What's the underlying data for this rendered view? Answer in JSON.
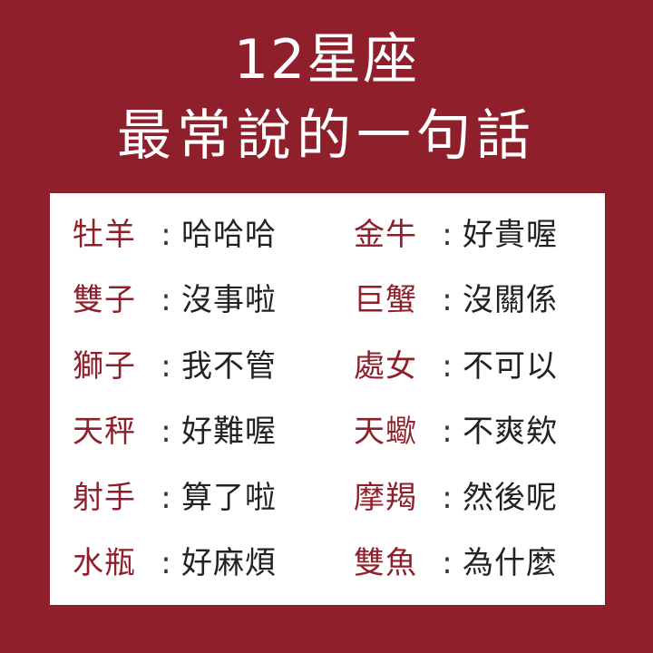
{
  "title": {
    "line1": "12星座",
    "line2": "最常說的一句話"
  },
  "separator": ":",
  "left_column": [
    {
      "sign": "牡羊",
      "phrase": "哈哈哈"
    },
    {
      "sign": "雙子",
      "phrase": "沒事啦"
    },
    {
      "sign": "獅子",
      "phrase": "我不管"
    },
    {
      "sign": "天秤",
      "phrase": "好難喔"
    },
    {
      "sign": "射手",
      "phrase": "算了啦"
    },
    {
      "sign": "水瓶",
      "phrase": "好麻煩"
    }
  ],
  "right_column": [
    {
      "sign": "金牛",
      "phrase": "好貴喔"
    },
    {
      "sign": "巨蟹",
      "phrase": "沒關係"
    },
    {
      "sign": "處女",
      "phrase": "不可以"
    },
    {
      "sign": "天蠍",
      "phrase": "不爽欸"
    },
    {
      "sign": "摩羯",
      "phrase": "然後呢"
    },
    {
      "sign": "雙魚",
      "phrase": "為什麼"
    }
  ],
  "colors": {
    "background": "#8f1f2a",
    "card": "#ffffff",
    "sign_text": "#8f1f2a",
    "phrase_text": "#222222"
  }
}
